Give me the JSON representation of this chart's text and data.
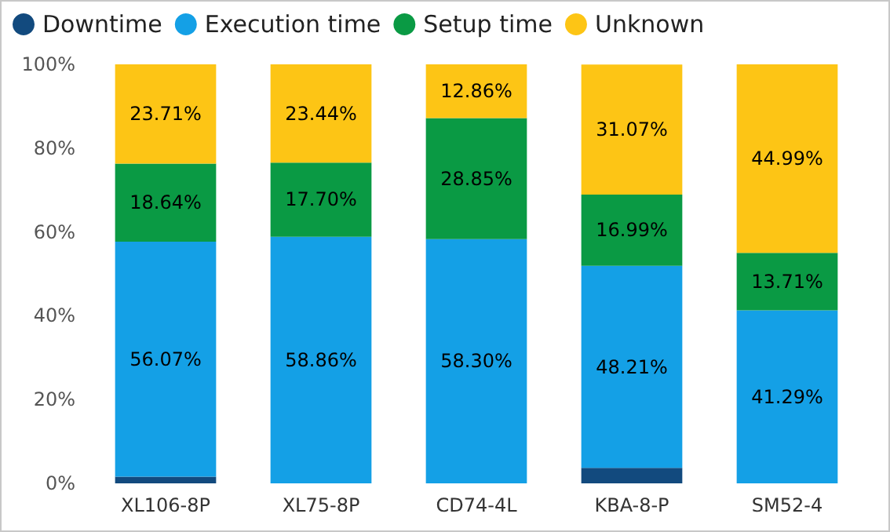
{
  "chart_data": {
    "type": "bar",
    "stacked": true,
    "categories": [
      "XL106-8P",
      "XL75-8P",
      "CD74-4L",
      "KBA-8-P",
      "SM52-4"
    ],
    "series": [
      {
        "name": "Downtime",
        "color": "#124a7e",
        "values": [
          1.6,
          0,
          0,
          3.7,
          0
        ]
      },
      {
        "name": "Execution time",
        "color": "#14a0e6",
        "values": [
          56.07,
          58.86,
          58.3,
          48.21,
          41.29
        ],
        "value_labels": [
          "56.07%",
          "58.86%",
          "58.30%",
          "48.21%",
          "41.29%"
        ]
      },
      {
        "name": "Setup time",
        "color": "#0a9a44",
        "values": [
          18.64,
          17.7,
          28.85,
          16.99,
          13.71
        ],
        "value_labels": [
          "18.64%",
          "17.70%",
          "28.85%",
          "16.99%",
          "13.71%"
        ]
      },
      {
        "name": "Unknown",
        "color": "#fdc515",
        "values": [
          23.71,
          23.44,
          12.86,
          31.07,
          44.99
        ],
        "value_labels": [
          "23.71%",
          "23.44%",
          "12.86%",
          "31.07%",
          "44.99%"
        ]
      }
    ],
    "ylim": [
      0,
      100
    ],
    "yticks": [
      {
        "value": 0,
        "label": "0%"
      },
      {
        "value": 20,
        "label": "20%"
      },
      {
        "value": 40,
        "label": "40%"
      },
      {
        "value": 60,
        "label": "60%"
      },
      {
        "value": 80,
        "label": "80%"
      },
      {
        "value": 100,
        "label": "100%"
      }
    ],
    "grid": false,
    "legend": "top left"
  }
}
